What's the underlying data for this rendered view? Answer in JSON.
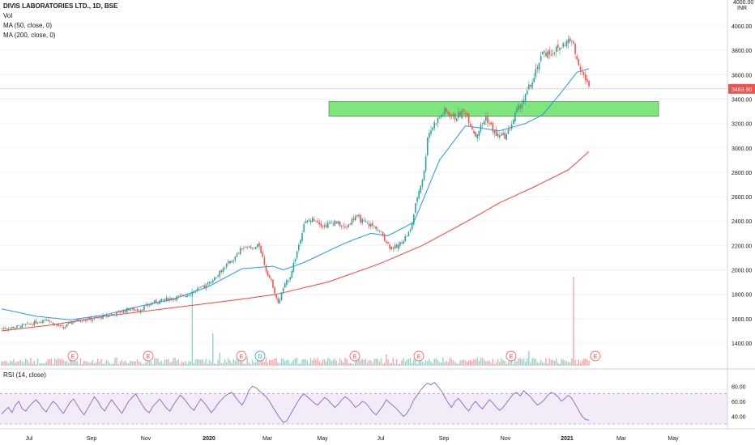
{
  "header": {
    "symbol": "DIVIS LABORATORIES LTD., 1D, BSE",
    "vol_label": "Vol",
    "ma50_label": "MA (50, close, 0)",
    "ma200_label": "MA (200, close, 0)",
    "currency": "INR",
    "currency_top": "4000.00"
  },
  "rsi": {
    "label": "RSI (14, close)",
    "ticks": [
      "80.00",
      "60.00",
      "40.00"
    ],
    "upper": 70,
    "lower": 30,
    "values": [
      43,
      48,
      52,
      45,
      55,
      60,
      50,
      47,
      53,
      58,
      62,
      57,
      50,
      46,
      54,
      60,
      56,
      49,
      44,
      52,
      59,
      63,
      55,
      48,
      42,
      50,
      58,
      66,
      60,
      52,
      47,
      55,
      62,
      56,
      50,
      44,
      52,
      60,
      65,
      70,
      62,
      55,
      48,
      45,
      53,
      58,
      63,
      57,
      51,
      47,
      55,
      62,
      68,
      64,
      58,
      52,
      48,
      56,
      63,
      58,
      52,
      45,
      50,
      57,
      62,
      67,
      70,
      72,
      66,
      60,
      55,
      63,
      75,
      80,
      78,
      74,
      70,
      66,
      60,
      52,
      45,
      38,
      32,
      34,
      42,
      50,
      58,
      65,
      70,
      66,
      62,
      58,
      55,
      60,
      65,
      62,
      57,
      52,
      56,
      62,
      66,
      63,
      58,
      52,
      55,
      60,
      58,
      52,
      46,
      42,
      48,
      54,
      62,
      58,
      54,
      50,
      45,
      40,
      44,
      52,
      62,
      68,
      75,
      80,
      84,
      82,
      85,
      80,
      74,
      66,
      58,
      52,
      60,
      64,
      58,
      52,
      47,
      55,
      60,
      54,
      50,
      56,
      62,
      58,
      52,
      48,
      52,
      58,
      64,
      70,
      72,
      67,
      74,
      70,
      66,
      60,
      55,
      58,
      62,
      68,
      72,
      70,
      66,
      60,
      64,
      68,
      64,
      56,
      48,
      40,
      36,
      35
    ]
  },
  "price_label": "3483.90",
  "chart_data": {
    "type": "candlestick",
    "title": "DIVIS LABORATORIES LTD., 1D, BSE",
    "ylabel": "INR",
    "ylim": [
      1300,
      4100
    ],
    "x_ticks": [
      "Jul",
      "Sep",
      "Nov",
      "2020",
      "Mar",
      "May",
      "Jul",
      "Sep",
      "Nov",
      "2021",
      "Mar",
      "May"
    ],
    "y_ticks": [
      "4000.00",
      "3800.00",
      "3600.00",
      "3400.00",
      "3200.00",
      "3000.00",
      "2800.00",
      "2600.00",
      "2400.00",
      "2200.00",
      "2000.00",
      "1800.00",
      "1600.00",
      "1400.00"
    ],
    "last_price": 3483.9,
    "close_anchors": [
      [
        0,
        1520
      ],
      [
        8,
        1530
      ],
      [
        18,
        1560
      ],
      [
        26,
        1600
      ],
      [
        30,
        1560
      ],
      [
        36,
        1520
      ],
      [
        40,
        1570
      ],
      [
        46,
        1590
      ],
      [
        54,
        1600
      ],
      [
        60,
        1620
      ],
      [
        68,
        1650
      ],
      [
        74,
        1680
      ],
      [
        80,
        1670
      ],
      [
        88,
        1730
      ],
      [
        96,
        1760
      ],
      [
        104,
        1780
      ],
      [
        112,
        1820
      ],
      [
        118,
        1860
      ],
      [
        124,
        1930
      ],
      [
        130,
        2030
      ],
      [
        136,
        2100
      ],
      [
        140,
        2180
      ],
      [
        146,
        2170
      ],
      [
        150,
        2200
      ],
      [
        154,
        2000
      ],
      [
        158,
        1870
      ],
      [
        161,
        1720
      ],
      [
        164,
        1850
      ],
      [
        168,
        1950
      ],
      [
        172,
        2150
      ],
      [
        176,
        2380
      ],
      [
        182,
        2420
      ],
      [
        188,
        2360
      ],
      [
        194,
        2400
      ],
      [
        200,
        2340
      ],
      [
        206,
        2440
      ],
      [
        212,
        2380
      ],
      [
        218,
        2350
      ],
      [
        222,
        2280
      ],
      [
        226,
        2190
      ],
      [
        230,
        2180
      ],
      [
        234,
        2250
      ],
      [
        238,
        2320
      ],
      [
        242,
        2600
      ],
      [
        246,
        2800
      ],
      [
        248,
        3100
      ],
      [
        252,
        3200
      ],
      [
        258,
        3300
      ],
      [
        264,
        3250
      ],
      [
        270,
        3300
      ],
      [
        276,
        3100
      ],
      [
        282,
        3250
      ],
      [
        288,
        3100
      ],
      [
        294,
        3100
      ],
      [
        300,
        3300
      ],
      [
        305,
        3420
      ],
      [
        310,
        3600
      ],
      [
        315,
        3780
      ],
      [
        320,
        3780
      ],
      [
        325,
        3820
      ],
      [
        330,
        3880
      ],
      [
        333,
        3850
      ],
      [
        336,
        3700
      ],
      [
        339,
        3600
      ],
      [
        342,
        3484
      ]
    ],
    "ma50_anchors": [
      [
        0,
        1680
      ],
      [
        20,
        1620
      ],
      [
        40,
        1590
      ],
      [
        60,
        1630
      ],
      [
        80,
        1700
      ],
      [
        100,
        1760
      ],
      [
        120,
        1860
      ],
      [
        140,
        2010
      ],
      [
        158,
        2030
      ],
      [
        164,
        2000
      ],
      [
        176,
        2060
      ],
      [
        200,
        2220
      ],
      [
        215,
        2300
      ],
      [
        225,
        2280
      ],
      [
        240,
        2390
      ],
      [
        255,
        2900
      ],
      [
        270,
        3180
      ],
      [
        290,
        3140
      ],
      [
        305,
        3200
      ],
      [
        315,
        3270
      ],
      [
        325,
        3440
      ],
      [
        335,
        3620
      ],
      [
        342,
        3650
      ]
    ],
    "ma200_anchors": [
      [
        0,
        1500
      ],
      [
        30,
        1550
      ],
      [
        60,
        1620
      ],
      [
        100,
        1690
      ],
      [
        140,
        1760
      ],
      [
        160,
        1800
      ],
      [
        190,
        1900
      ],
      [
        220,
        2050
      ],
      [
        245,
        2200
      ],
      [
        270,
        2390
      ],
      [
        290,
        2550
      ],
      [
        310,
        2680
      ],
      [
        330,
        2820
      ],
      [
        342,
        2970
      ]
    ],
    "support_zone": [
      3260,
      3380
    ],
    "volume_spikes": [
      [
        111,
        95
      ],
      [
        123,
        40
      ],
      [
        127,
        16
      ],
      [
        143,
        11
      ],
      [
        224,
        14
      ],
      [
        333,
        110
      ],
      [
        307,
        18
      ]
    ],
    "events": [
      {
        "label": "E",
        "type": "earnings"
      },
      {
        "label": "E",
        "type": "earnings"
      },
      {
        "label": "E",
        "type": "earnings"
      },
      {
        "label": "D",
        "type": "dividend"
      },
      {
        "label": "E",
        "type": "earnings"
      },
      {
        "label": "E",
        "type": "earnings"
      },
      {
        "label": "E",
        "type": "earnings"
      },
      {
        "label": "E",
        "type": "earnings"
      }
    ],
    "colors": {
      "up": "#26a69a",
      "down": "#ef5350",
      "ma50": "#2196f3",
      "ma200": "#f44336",
      "zone": "#7ee67a",
      "rsi": "#7e57c2"
    }
  }
}
